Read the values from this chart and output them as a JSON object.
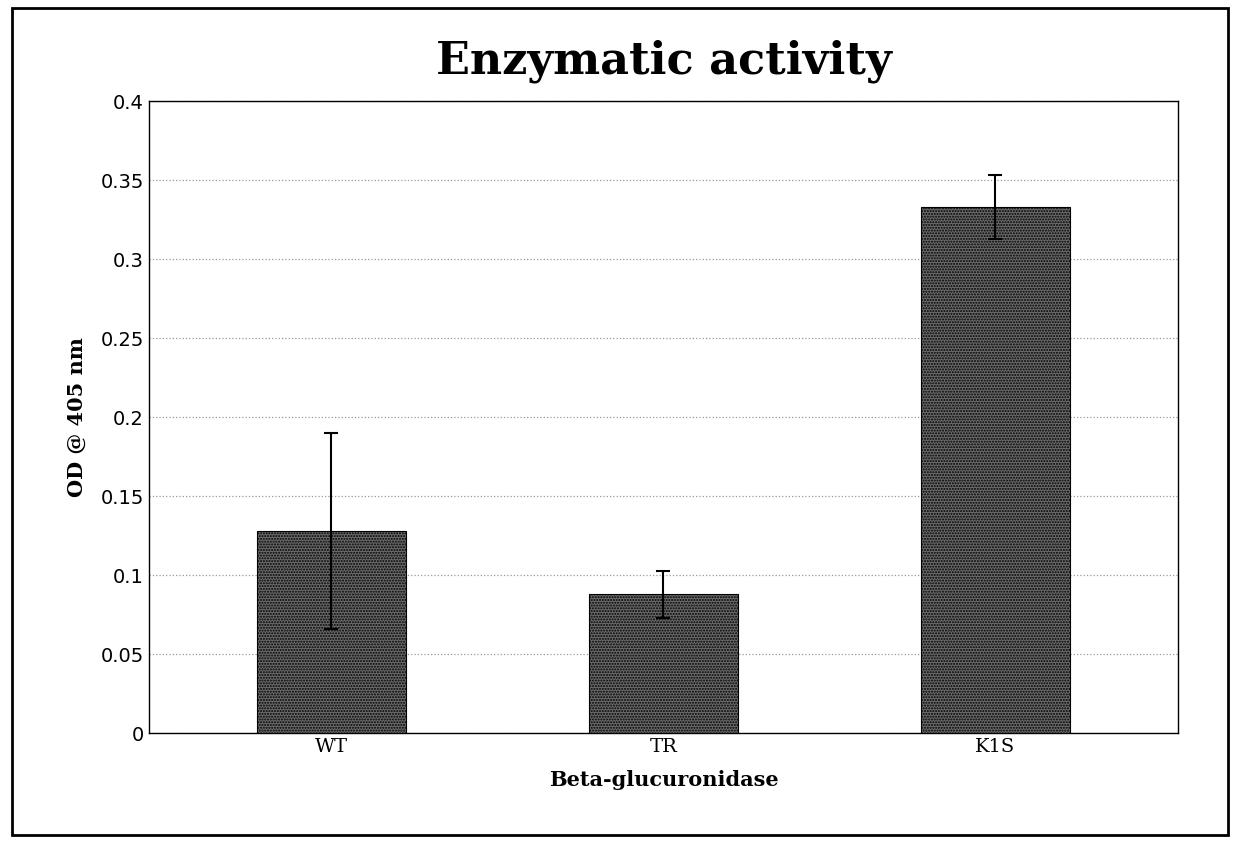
{
  "title": "Enzymatic activity",
  "xlabel": "Beta-glucuronidase",
  "ylabel": "OD @ 405 nm",
  "categories": [
    "WT",
    "TR",
    "K1S"
  ],
  "values": [
    0.128,
    0.088,
    0.333
  ],
  "errors": [
    0.062,
    0.015,
    0.02
  ],
  "bar_color": "#6b6b6b",
  "bar_edge_color": "#000000",
  "ylim": [
    0,
    0.4
  ],
  "yticks": [
    0,
    0.05,
    0.1,
    0.15,
    0.2,
    0.25,
    0.3,
    0.35,
    0.4
  ],
  "title_fontsize": 32,
  "axis_label_fontsize": 15,
  "tick_fontsize": 14,
  "bar_width": 0.45,
  "figsize": [
    12.4,
    8.43
  ],
  "dpi": 100,
  "background_color": "#ffffff",
  "grid_color": "#999999",
  "grid_linestyle": ":",
  "grid_linewidth": 0.9,
  "capsize": 5,
  "hatch": "......"
}
